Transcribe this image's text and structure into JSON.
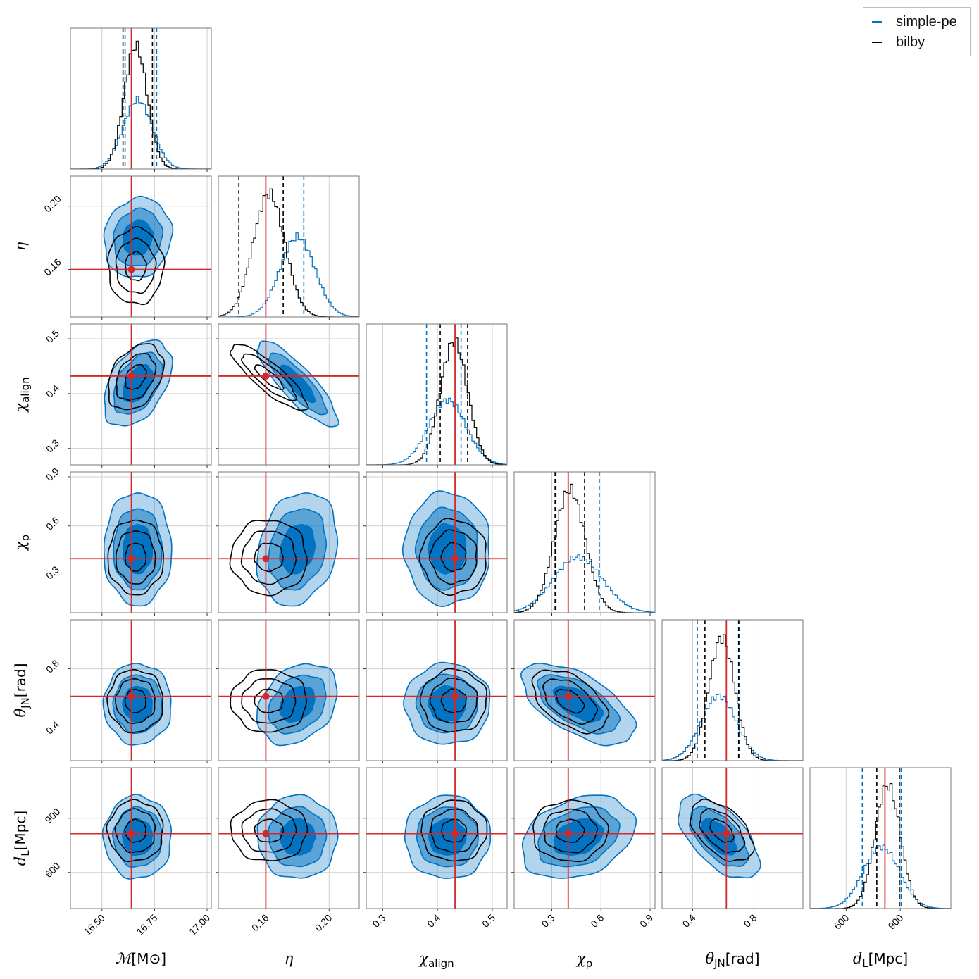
{
  "chart_data": {
    "type": "corner",
    "parameters": [
      {
        "key": "mc",
        "label": "ℳ",
        "unit": "[M⊙]",
        "range": [
          16.35,
          17.02
        ],
        "ticks": [
          16.5,
          16.75,
          17.0
        ],
        "tick_labels": [
          "16.50",
          "16.75",
          "17.00"
        ],
        "injection": 16.64
      },
      {
        "key": "eta",
        "label": "η",
        "unit": "",
        "range": [
          0.13,
          0.219
        ],
        "ticks": [
          0.16,
          0.2
        ],
        "tick_labels": [
          "0.16",
          "0.20"
        ],
        "injection": 0.16
      },
      {
        "key": "chi_align",
        "label": "χ",
        "sub": "align",
        "unit": "",
        "range": [
          0.27,
          0.527
        ],
        "ticks": [
          0.3,
          0.4,
          0.5
        ],
        "tick_labels": [
          "0.3",
          "0.4",
          "0.5"
        ],
        "injection": 0.432
      },
      {
        "key": "chi_p",
        "label": "χ",
        "sub": "p",
        "unit": "",
        "range": [
          0.07,
          0.93
        ],
        "ticks": [
          0.3,
          0.6,
          0.9
        ],
        "tick_labels": [
          "0.3",
          "0.6",
          "0.9"
        ],
        "injection": 0.4
      },
      {
        "key": "theta_jn",
        "label": "θ",
        "sub": "JN",
        "unit": "[rad]",
        "range": [
          0.2,
          1.12
        ],
        "ticks": [
          0.4,
          0.8
        ],
        "tick_labels": [
          "0.4",
          "0.8"
        ],
        "injection": 0.62
      },
      {
        "key": "d_l",
        "label": "d",
        "sub": "L",
        "unit": "[Mpc]",
        "range": [
          400,
          1180
        ],
        "ticks": [
          600,
          900
        ],
        "tick_labels": [
          "600",
          "900"
        ],
        "injection": 815
      }
    ],
    "series": [
      {
        "name": "simple-pe",
        "color": "#0072c1",
        "style": "filled contours + step histogram",
        "mean": [
          16.67,
          0.18,
          0.418,
          0.46,
          0.57,
          795
        ],
        "std": [
          0.07,
          0.011,
          0.034,
          0.15,
          0.115,
          100
        ],
        "quantiles": [
          [
            16.61,
            16.76
          ],
          [
            0.143,
            0.184
          ],
          [
            0.38,
            0.443
          ],
          [
            0.325,
            0.59
          ],
          [
            0.43,
            0.705
          ],
          [
            690,
            905
          ]
        ],
        "corr": {
          "1-0": 0.1,
          "2-0": 0.45,
          "2-1": -0.85,
          "3-1": 0.2,
          "4-1": 0.3,
          "4-3": -0.6,
          "5-3": 0.3,
          "5-4": -0.6
        }
      },
      {
        "name": "bilby",
        "color": "#000000",
        "style": "line contours + step histogram",
        "mean": [
          16.66,
          0.162,
          0.43,
          0.41,
          0.59,
          830
        ],
        "std": [
          0.055,
          0.01,
          0.025,
          0.095,
          0.085,
          70
        ],
        "quantiles": [
          [
            16.6,
            16.74
          ],
          [
            0.143,
            0.171
          ],
          [
            0.405,
            0.455
          ],
          [
            0.32,
            0.5
          ],
          [
            0.48,
            0.7
          ],
          [
            770,
            895
          ]
        ],
        "corr": {
          "2-0": 0.35,
          "2-1": -0.85,
          "4-3": -0.5,
          "5-4": -0.5
        }
      }
    ],
    "injection_color": "#d62728",
    "legend": {
      "placement": "top-right",
      "entries": [
        "simple-pe",
        "bilby"
      ]
    },
    "grid": true
  }
}
